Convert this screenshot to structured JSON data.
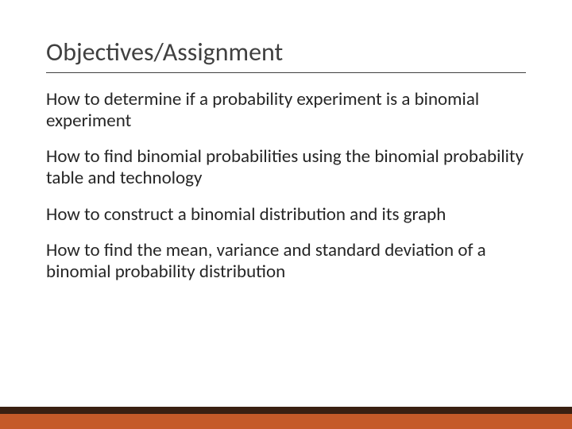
{
  "slide": {
    "title": "Objectives/Assignment",
    "items": [
      "How to determine if a probability experiment is a binomial experiment",
      "How to find binomial probabilities using the binomial probability table and technology",
      "How to construct a binomial distribution and its graph",
      "How to find the mean, variance and standard deviation of a binomial probability distribution"
    ]
  },
  "footer": {
    "top_color": "#3a2012",
    "bottom_color": "#c55a29"
  },
  "styling": {
    "background_color": "#ffffff",
    "title_fontsize": 32,
    "title_color": "#404040",
    "body_fontsize": 23,
    "body_color": "#262626",
    "divider_color": "#404040"
  }
}
